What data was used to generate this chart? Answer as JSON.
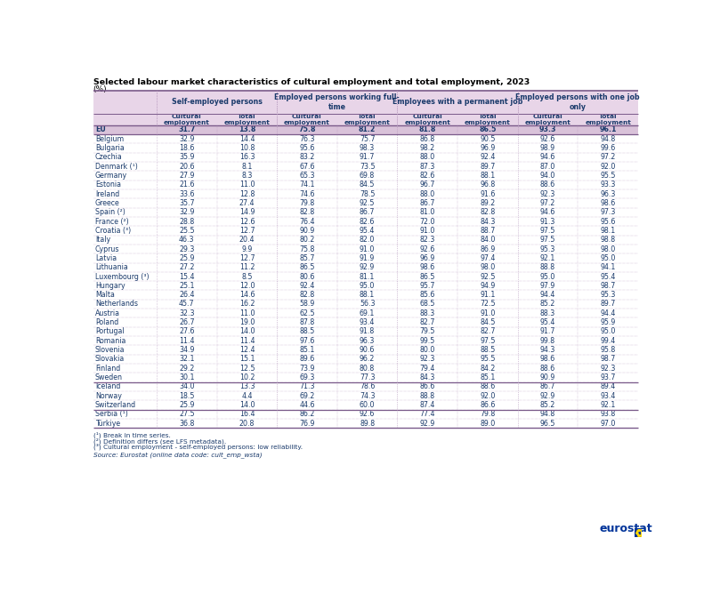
{
  "title": "Selected labour market characteristics of cultural employment and total employment, 2023",
  "subtitle": "(%)",
  "col_groups": [
    "Self-employed persons",
    "Employed persons working full-\ntime",
    "Employees with a permanent job",
    "Employed persons with one job\nonly"
  ],
  "col_sub": [
    "Cultural\nemployment",
    "Total\nemployment"
  ],
  "countries": [
    "EU",
    "Belgium",
    "Bulgaria",
    "Czechia",
    "Denmark (¹)",
    "Germany",
    "Estonia",
    "Ireland",
    "Greece",
    "Spain (²)",
    "France (²)",
    "Croatia (³)",
    "Italy",
    "Cyprus",
    "Latvia",
    "Lithuania",
    "Luxembourg (³)",
    "Hungary",
    "Malta",
    "Netherlands",
    "Austria",
    "Poland",
    "Portugal",
    "Romania",
    "Slovenia",
    "Slovakia",
    "Finland",
    "Sweden",
    "Iceland",
    "Norway",
    "Switzerland",
    "Serbia (¹)",
    "Türkiye"
  ],
  "efta_start": "Iceland",
  "candidate_start": "Serbia (¹)",
  "data": {
    "EU": [
      31.7,
      13.8,
      75.8,
      81.2,
      81.8,
      86.5,
      93.3,
      96.1
    ],
    "Belgium": [
      32.9,
      14.4,
      76.3,
      75.7,
      86.8,
      90.5,
      92.6,
      94.8
    ],
    "Bulgaria": [
      18.6,
      10.8,
      95.6,
      98.3,
      98.2,
      96.9,
      98.9,
      99.6
    ],
    "Czechia": [
      35.9,
      16.3,
      83.2,
      91.7,
      88.0,
      92.4,
      94.6,
      97.2
    ],
    "Denmark (¹)": [
      20.6,
      8.1,
      67.6,
      73.5,
      87.3,
      89.7,
      87.0,
      92.0
    ],
    "Germany": [
      27.9,
      8.3,
      65.3,
      69.8,
      82.6,
      88.1,
      94.0,
      95.5
    ],
    "Estonia": [
      21.6,
      11.0,
      74.1,
      84.5,
      96.7,
      96.8,
      88.6,
      93.3
    ],
    "Ireland": [
      33.6,
      12.8,
      74.6,
      78.5,
      88.0,
      91.6,
      92.3,
      96.3
    ],
    "Greece": [
      35.7,
      27.4,
      79.8,
      92.5,
      86.7,
      89.2,
      97.2,
      98.6
    ],
    "Spain (²)": [
      32.9,
      14.9,
      82.8,
      86.7,
      81.0,
      82.8,
      94.6,
      97.3
    ],
    "France (²)": [
      28.8,
      12.6,
      76.4,
      82.6,
      72.0,
      84.3,
      91.3,
      95.6
    ],
    "Croatia (³)": [
      25.5,
      12.7,
      90.9,
      95.4,
      91.0,
      88.7,
      97.5,
      98.1
    ],
    "Italy": [
      46.3,
      20.4,
      80.2,
      82.0,
      82.3,
      84.0,
      97.5,
      98.8
    ],
    "Cyprus": [
      29.3,
      9.9,
      75.8,
      91.0,
      92.6,
      86.9,
      95.3,
      98.0
    ],
    "Latvia": [
      25.9,
      12.7,
      85.7,
      91.9,
      96.9,
      97.4,
      92.1,
      95.0
    ],
    "Lithuania": [
      27.2,
      11.2,
      86.5,
      92.9,
      98.6,
      98.0,
      88.8,
      94.1
    ],
    "Luxembourg (³)": [
      15.4,
      8.5,
      80.6,
      81.1,
      86.5,
      92.5,
      95.0,
      95.4
    ],
    "Hungary": [
      25.1,
      12.0,
      92.4,
      95.0,
      95.7,
      94.9,
      97.9,
      98.7
    ],
    "Malta": [
      26.4,
      14.6,
      82.8,
      88.1,
      85.6,
      91.1,
      94.4,
      95.3
    ],
    "Netherlands": [
      45.7,
      16.2,
      58.9,
      56.3,
      68.5,
      72.5,
      85.2,
      89.7
    ],
    "Austria": [
      32.3,
      11.0,
      62.5,
      69.1,
      88.3,
      91.0,
      88.3,
      94.4
    ],
    "Poland": [
      26.7,
      19.0,
      87.8,
      93.4,
      82.7,
      84.5,
      95.4,
      95.9
    ],
    "Portugal": [
      27.6,
      14.0,
      88.5,
      91.8,
      79.5,
      82.7,
      91.7,
      95.0
    ],
    "Romania": [
      11.4,
      11.4,
      97.6,
      96.3,
      99.5,
      97.5,
      99.8,
      99.4
    ],
    "Slovenia": [
      34.9,
      12.4,
      85.1,
      90.6,
      80.0,
      88.5,
      94.3,
      95.8
    ],
    "Slovakia": [
      32.1,
      15.1,
      89.6,
      96.2,
      92.3,
      95.5,
      98.6,
      98.7
    ],
    "Finland": [
      29.2,
      12.5,
      73.9,
      80.8,
      79.4,
      84.2,
      88.6,
      92.3
    ],
    "Sweden": [
      30.1,
      10.2,
      69.3,
      77.3,
      84.3,
      85.1,
      90.9,
      93.7
    ],
    "Iceland": [
      34.0,
      13.3,
      71.3,
      78.6,
      86.6,
      88.6,
      86.7,
      89.4
    ],
    "Norway": [
      18.5,
      4.4,
      69.2,
      74.3,
      88.8,
      92.0,
      92.9,
      93.4
    ],
    "Switzerland": [
      25.9,
      14.0,
      44.6,
      60.0,
      87.4,
      86.6,
      85.2,
      92.1
    ],
    "Serbia (¹)": [
      27.5,
      16.4,
      86.2,
      92.6,
      77.4,
      79.8,
      94.8,
      93.8
    ],
    "Türkiye": [
      36.8,
      20.8,
      76.9,
      89.8,
      92.9,
      89.0,
      96.5,
      97.0
    ]
  },
  "footnotes": [
    "(¹) Break in time series.",
    "(²) Definition differs (see LFS metadata).",
    "(³) Cultural employment - self-employed persons: low reliability."
  ],
  "source": "Source: Eurostat (online data code: cult_emp_wsta)",
  "header_bg": "#e8d5e8",
  "eu_bg": "#d9c2d9",
  "white_bg": "#ffffff",
  "text_color": "#1a3a6b",
  "title_color": "#000000",
  "border_color": "#b090b8",
  "heavy_border_color": "#7a5a8a"
}
